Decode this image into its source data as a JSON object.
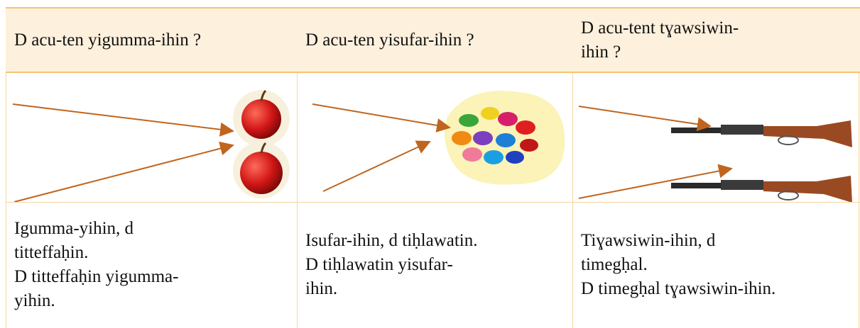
{
  "table": {
    "header": [
      [
        "D acu-ten yigumma-ihin ?"
      ],
      [
        "D acu-ten yisufar-ihin ?"
      ],
      [
        "D acu-tent tɣawsiwin-",
        "ihin ?"
      ]
    ],
    "answers": [
      [
        "Igumma-yihin, d",
        "titteffaḥin.",
        "D titteffaḥin yigumma-",
        "yihin."
      ],
      [
        "Isufar-ihin, d tiḥlawatin.",
        "D tiḥlawatin yisufar-",
        "ihin."
      ],
      [
        "Tiɣawsiwin-ihin, d",
        "timegḥal.",
        "D timegḥal tɣawsiwin-ihin."
      ]
    ]
  }
}
